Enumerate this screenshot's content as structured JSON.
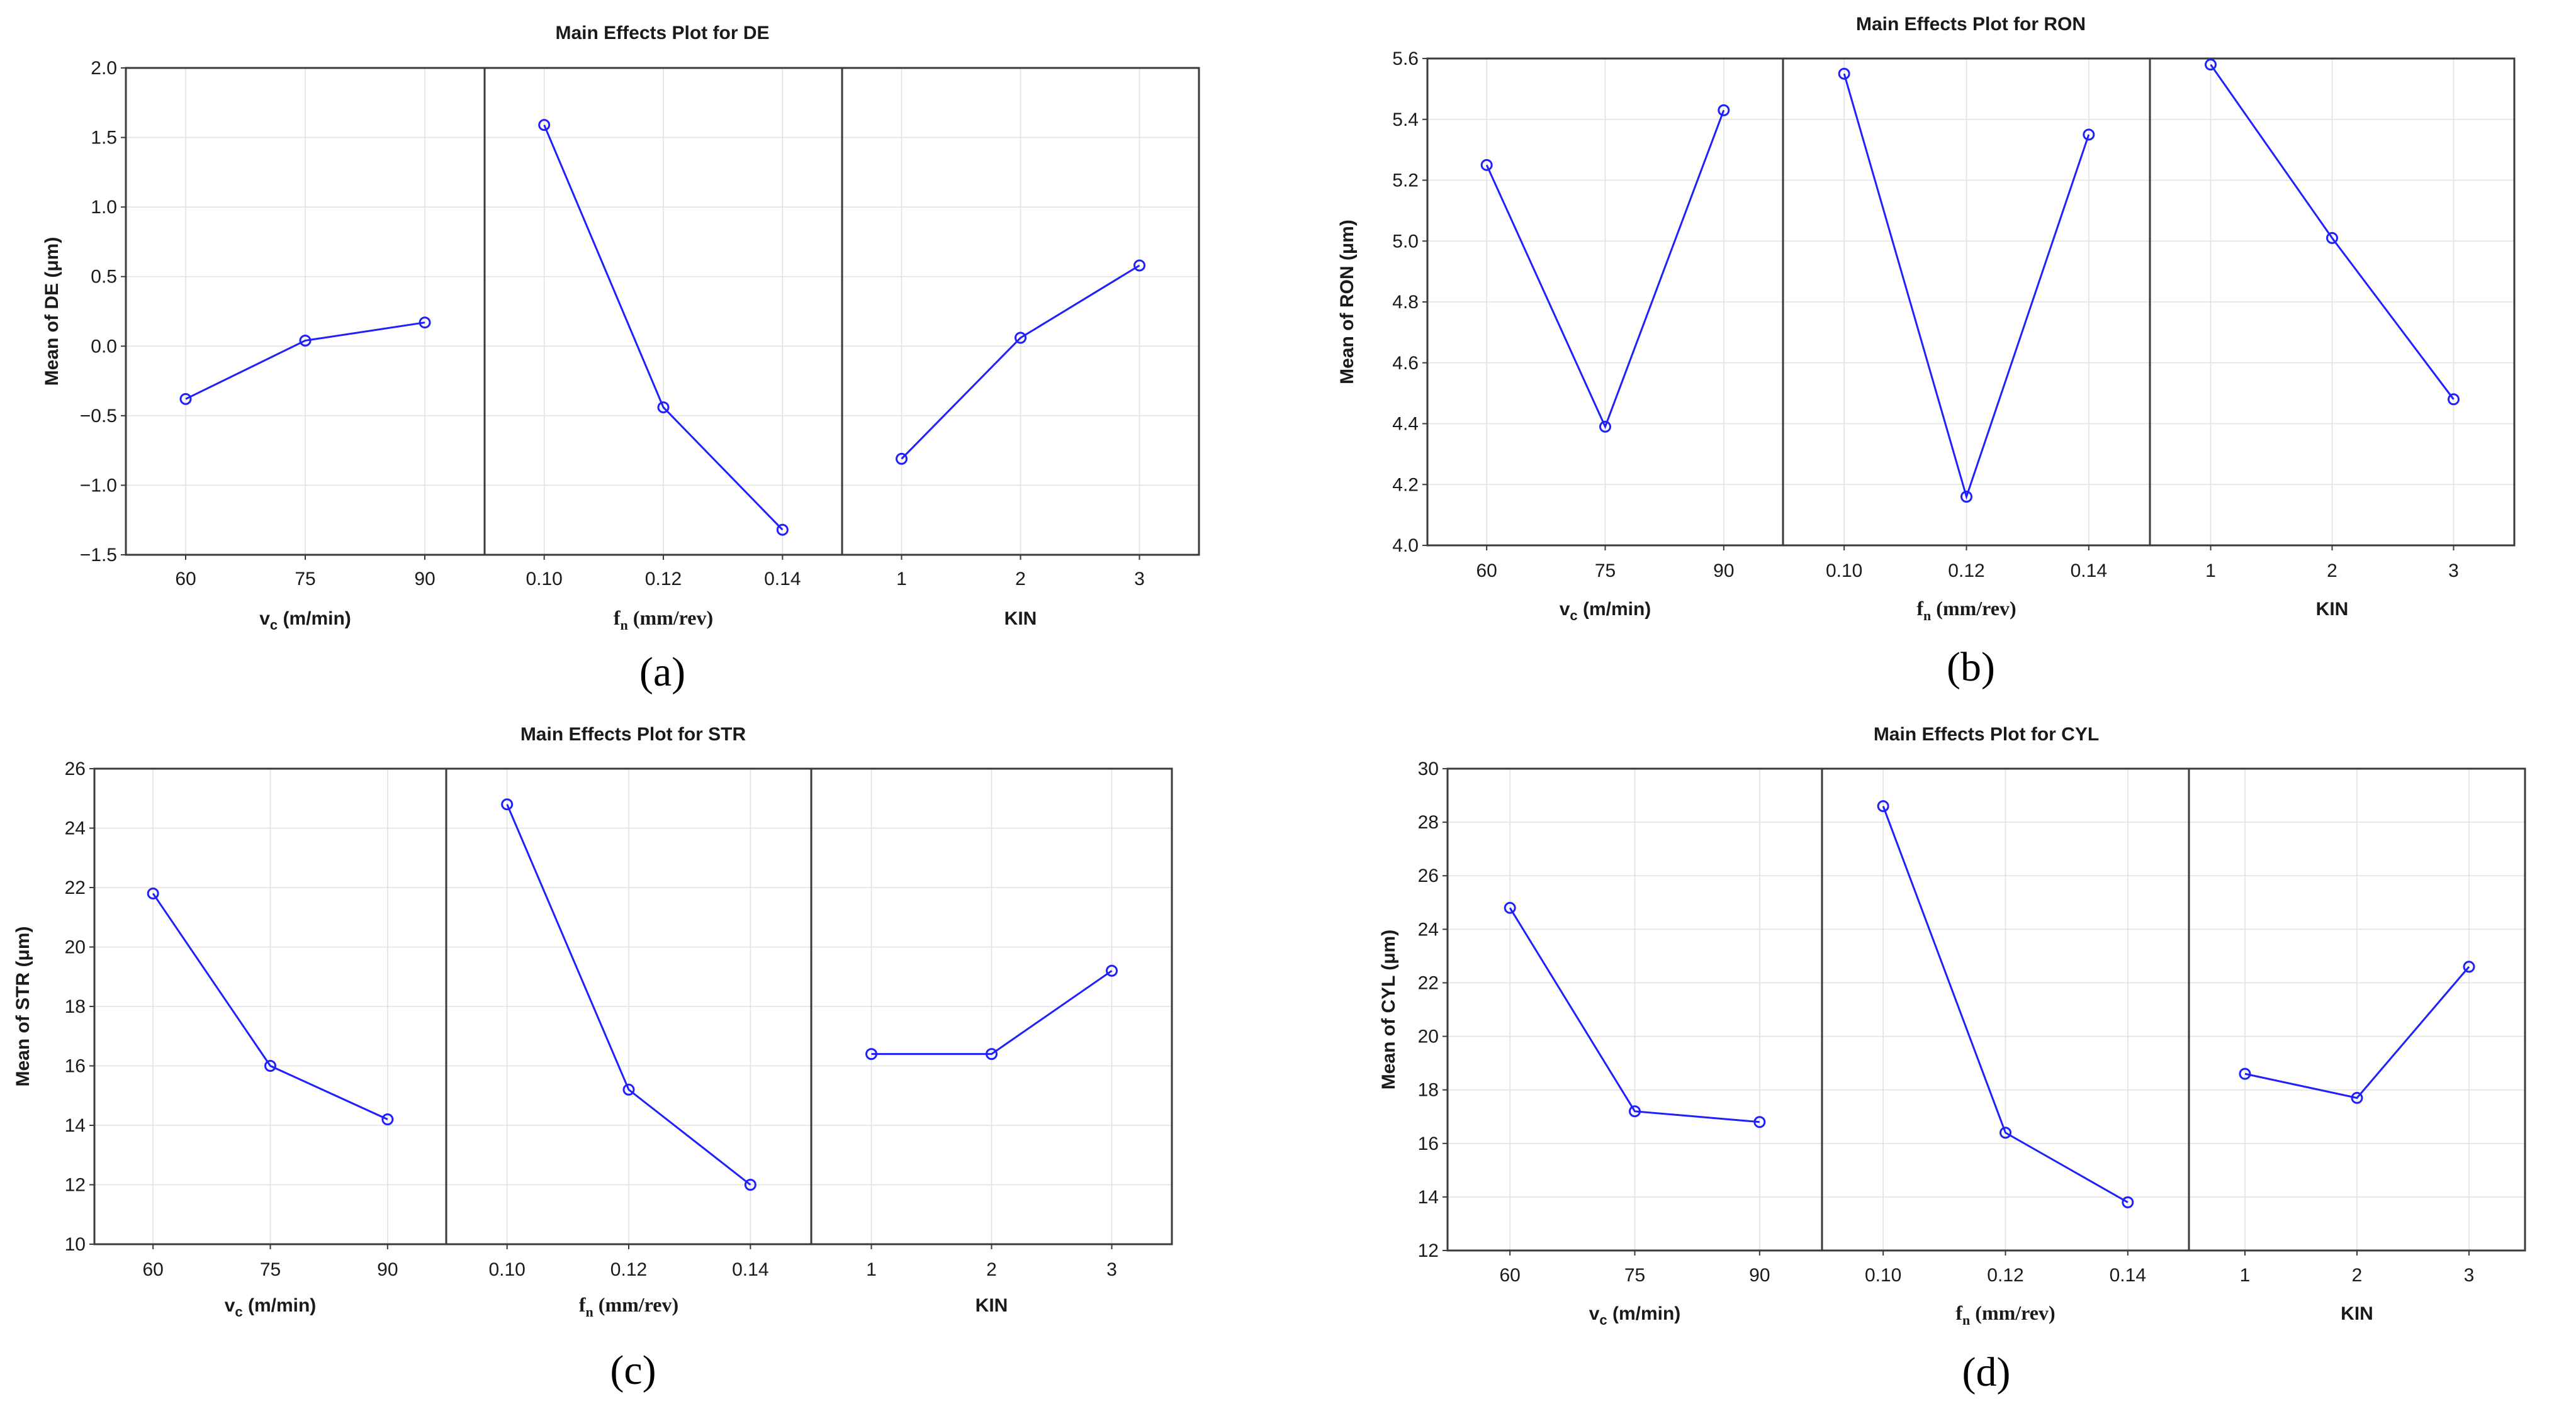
{
  "colors": {
    "series": "#1f1fff",
    "text": "#1a1a1a",
    "frame": "#3a3a3a"
  },
  "chart_data": [
    {
      "panel": "(a)",
      "type": "line",
      "title": "Main Effects Plot for DE",
      "ylabel": "Mean of DE (μm)",
      "ylim": [
        -1.5,
        2.0
      ],
      "yticks": [
        "2.0",
        "1.5",
        "1.0",
        "0.5",
        "0.0",
        "−0.5",
        "−1.0",
        "−1.5"
      ],
      "subplots": [
        {
          "xlabel_main": "v",
          "xlabel_sub": "c",
          "xlabel_rest": " (m/min)",
          "categories": [
            "60",
            "75",
            "90"
          ],
          "values": [
            -0.38,
            0.04,
            0.17
          ]
        },
        {
          "xlabel_main": "f",
          "xlabel_sub": "n",
          "xlabel_rest": " (mm/rev)",
          "categories": [
            "0.10",
            "0.12",
            "0.14"
          ],
          "values": [
            1.59,
            -0.44,
            -1.32
          ]
        },
        {
          "xlabel_main": "KIN",
          "xlabel_sub": "",
          "xlabel_rest": "",
          "categories": [
            "1",
            "2",
            "3"
          ],
          "values": [
            -0.81,
            0.06,
            0.58
          ]
        }
      ]
    },
    {
      "panel": "(b)",
      "type": "line",
      "title": "Main Effects Plot for RON",
      "ylabel": "Mean of RON (μm)",
      "ylim": [
        4.0,
        5.6
      ],
      "yticks": [
        "5.6",
        "5.4",
        "5.2",
        "5.0",
        "4.8",
        "4.6",
        "4.4",
        "4.2",
        "4.0"
      ],
      "subplots": [
        {
          "xlabel_main": "v",
          "xlabel_sub": "c",
          "xlabel_rest": " (m/min)",
          "categories": [
            "60",
            "75",
            "90"
          ],
          "values": [
            5.25,
            4.39,
            5.43
          ]
        },
        {
          "xlabel_main": "f",
          "xlabel_sub": "n",
          "xlabel_rest": " (mm/rev)",
          "categories": [
            "0.10",
            "0.12",
            "0.14"
          ],
          "values": [
            5.55,
            4.16,
            5.35
          ]
        },
        {
          "xlabel_main": "KIN",
          "xlabel_sub": "",
          "xlabel_rest": "",
          "categories": [
            "1",
            "2",
            "3"
          ],
          "values": [
            5.58,
            5.01,
            4.48
          ]
        }
      ]
    },
    {
      "panel": "(c)",
      "type": "line",
      "title": "Main Effects Plot for STR",
      "ylabel": "Mean of STR (μm)",
      "ylim": [
        10,
        26
      ],
      "yticks": [
        "26",
        "24",
        "22",
        "20",
        "18",
        "16",
        "14",
        "12",
        "10"
      ],
      "subplots": [
        {
          "xlabel_main": "v",
          "xlabel_sub": "c",
          "xlabel_rest": " (m/min)",
          "categories": [
            "60",
            "75",
            "90"
          ],
          "values": [
            21.8,
            16.0,
            14.2
          ]
        },
        {
          "xlabel_main": "f",
          "xlabel_sub": "n",
          "xlabel_rest": " (mm/rev)",
          "categories": [
            "0.10",
            "0.12",
            "0.14"
          ],
          "values": [
            24.8,
            15.2,
            12.0
          ]
        },
        {
          "xlabel_main": "KIN",
          "xlabel_sub": "",
          "xlabel_rest": "",
          "categories": [
            "1",
            "2",
            "3"
          ],
          "values": [
            16.4,
            16.4,
            19.2
          ]
        }
      ]
    },
    {
      "panel": "(d)",
      "type": "line",
      "title": "Main Effects Plot for CYL",
      "ylabel": "Mean of CYL (μm)",
      "ylim": [
        12,
        30
      ],
      "yticks": [
        "30",
        "28",
        "26",
        "24",
        "22",
        "20",
        "18",
        "16",
        "14",
        "12"
      ],
      "subplots": [
        {
          "xlabel_main": "v",
          "xlabel_sub": "c",
          "xlabel_rest": " (m/min)",
          "categories": [
            "60",
            "75",
            "90"
          ],
          "values": [
            24.8,
            17.2,
            16.8
          ]
        },
        {
          "xlabel_main": "f",
          "xlabel_sub": "n",
          "xlabel_rest": " (mm/rev)",
          "categories": [
            "0.10",
            "0.12",
            "0.14"
          ],
          "values": [
            28.6,
            16.4,
            13.8
          ]
        },
        {
          "xlabel_main": "KIN",
          "xlabel_sub": "",
          "xlabel_rest": "",
          "categories": [
            "1",
            "2",
            "3"
          ],
          "values": [
            18.6,
            17.7,
            22.6
          ]
        }
      ]
    }
  ]
}
